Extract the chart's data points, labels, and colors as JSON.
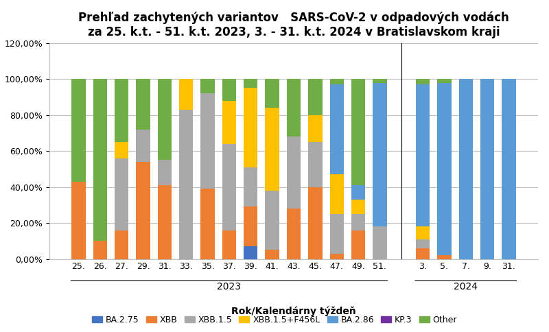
{
  "title_line1": "Prehľad zachytených variantov   SARS-CoV-2 v odpadových vodách",
  "title_line2": "za 25. k.t. - 51. k.t. 2023, 3. - 31. k.t. 2024 v Bratislavskom kraji",
  "xlabel": "Rok/Kalendárny týždeň",
  "ylabel": "%",
  "ylim": [
    0,
    1.2
  ],
  "yticks": [
    0.0,
    0.2,
    0.4,
    0.6,
    0.8,
    1.0,
    1.2
  ],
  "ytick_labels": [
    "0,00%",
    "20,00%",
    "40,00%",
    "60,00%",
    "80,00%",
    "100,00%",
    "120,00%"
  ],
  "categories_2023": [
    "25.",
    "26.",
    "27.",
    "29.",
    "31.",
    "33.",
    "35.",
    "37.",
    "39.",
    "41.",
    "43.",
    "45.",
    "47.",
    "49.",
    "51."
  ],
  "categories_2024": [
    "3.",
    "5.",
    "7.",
    "9.",
    "31."
  ],
  "series_names": [
    "BA.2.75",
    "XBB",
    "XBB.1.5",
    "XBB.1.5+F456L",
    "BA.2.86",
    "KP.3",
    "Other"
  ],
  "colors": [
    "#4472C4",
    "#ED7D31",
    "#A9A9A9",
    "#FFC000",
    "#5B9BD5",
    "#7030A0",
    "#70AD47"
  ],
  "data": {
    "BA.2.75": [
      0.0,
      0.0,
      0.0,
      0.0,
      0.0,
      0.0,
      0.0,
      0.0,
      0.07,
      0.0,
      0.0,
      0.0,
      0.0,
      0.0,
      0.0,
      0.0,
      0.0,
      0.0,
      0.0,
      0.0
    ],
    "XBB": [
      0.43,
      0.1,
      0.16,
      0.54,
      0.41,
      0.0,
      0.39,
      0.16,
      0.22,
      0.05,
      0.28,
      0.4,
      0.03,
      0.16,
      0.0,
      0.06,
      0.02,
      0.0,
      0.0,
      0.0
    ],
    "XBB.1.5": [
      0.0,
      0.0,
      0.4,
      0.18,
      0.14,
      0.83,
      0.53,
      0.48,
      0.22,
      0.33,
      0.4,
      0.25,
      0.22,
      0.09,
      0.18,
      0.05,
      0.0,
      0.0,
      0.0,
      0.0
    ],
    "XBB.1.5+F456L": [
      0.0,
      0.0,
      0.09,
      0.0,
      0.0,
      0.17,
      0.0,
      0.24,
      0.44,
      0.46,
      0.0,
      0.15,
      0.22,
      0.08,
      0.0,
      0.07,
      0.0,
      0.0,
      0.0,
      0.0
    ],
    "BA.2.86": [
      0.0,
      0.0,
      0.0,
      0.0,
      0.0,
      0.0,
      0.0,
      0.0,
      0.0,
      0.0,
      0.0,
      0.0,
      0.5,
      0.08,
      0.8,
      0.79,
      0.96,
      1.0,
      1.0,
      1.0
    ],
    "KP.3": [
      0.0,
      0.0,
      0.0,
      0.0,
      0.0,
      0.0,
      0.0,
      0.0,
      0.0,
      0.0,
      0.0,
      0.0,
      0.0,
      0.0,
      0.0,
      0.0,
      0.0,
      0.0,
      0.0,
      0.0
    ],
    "Other": [
      0.57,
      0.9,
      0.35,
      0.28,
      0.45,
      0.0,
      0.08,
      0.12,
      0.05,
      0.16,
      0.32,
      0.2,
      0.03,
      0.59,
      0.02,
      0.03,
      0.02,
      0.0,
      0.0,
      0.0
    ]
  },
  "bar_width": 0.65,
  "background_color": "#FFFFFF",
  "grid_color": "#BFBFBF",
  "title_fontsize": 12,
  "axis_fontsize": 10,
  "tick_fontsize": 9,
  "legend_fontsize": 9
}
